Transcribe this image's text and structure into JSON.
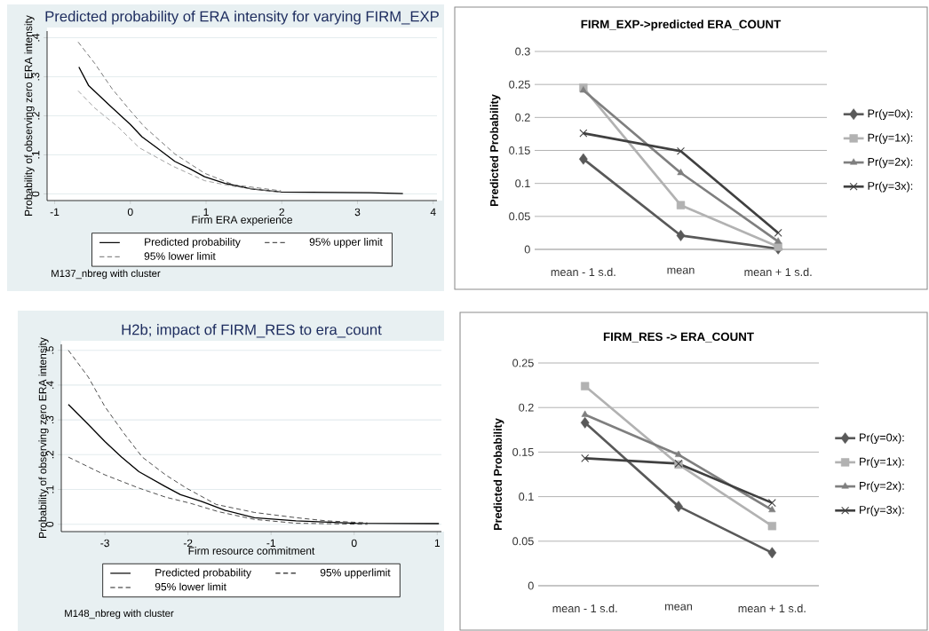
{
  "chart_data": [
    {
      "type": "line",
      "title": "Predicted probability of ERA intensity for varying FIRM_EXP",
      "xlabel": "Firm ERA experience",
      "ylabel": "Probability of observing zero ERA intensity",
      "xlim": [
        -1.1,
        4.05
      ],
      "ylim": [
        -0.017,
        0.417
      ],
      "xticks": [
        -1,
        0,
        1,
        2,
        3,
        4
      ],
      "yticks": [
        0,
        {
          "value": 0.1,
          "label": ".1"
        },
        {
          "value": 0.2,
          "label": ".2"
        },
        {
          "value": 0.3,
          "label": ".3"
        },
        {
          "value": 0.4,
          "label": ".4"
        }
      ],
      "grid": "y",
      "legend": "bottom",
      "marker": "none",
      "series": [
        {
          "name": "Predicted probability",
          "color": "#000000",
          "line_style": "solid",
          "x": [
            -0.68,
            -0.55,
            -0.28,
            0.0,
            0.155,
            0.35,
            0.59,
            0.78,
            0.98,
            1.25,
            1.6,
            1.99,
            3.17,
            3.6
          ],
          "values": [
            0.325,
            0.277,
            0.228,
            0.178,
            0.146,
            0.118,
            0.083,
            0.065,
            0.044,
            0.027,
            0.013,
            0.005,
            0.003,
            0.001
          ]
        },
        {
          "name": "95% upper limit",
          "color": "#555555",
          "line_style": "dashed",
          "x": [
            -0.69,
            -0.47,
            -0.24,
            0.0,
            0.19,
            0.59,
            0.98,
            1.37,
            1.99
          ],
          "values": [
            0.389,
            0.334,
            0.269,
            0.213,
            0.171,
            0.102,
            0.053,
            0.023,
            0.008
          ]
        },
        {
          "name": "95% lower limit",
          "color": "#8a8a8a",
          "line_style": "dashed",
          "x": [
            -0.69,
            -0.47,
            -0.16,
            0.12,
            0.55,
            0.98,
            1.37,
            1.99
          ],
          "values": [
            0.264,
            0.22,
            0.171,
            0.118,
            0.072,
            0.034,
            0.019,
            0.004
          ]
        }
      ],
      "annotations": [
        "M137_nbreg with cluster"
      ]
    },
    {
      "type": "line",
      "title": "FIRM_EXP->predicted ERA_COUNT",
      "ylabel": "Predicted Probability",
      "categories": [
        "mean - 1 s.d.",
        "mean",
        "mean + 1 s.d."
      ],
      "ylim": [
        0,
        0.3
      ],
      "yticks": [
        0,
        0.05,
        0.1,
        0.15,
        0.2,
        0.25,
        0.3
      ],
      "grid": "y",
      "legend": "right",
      "series": [
        {
          "name": "Pr(y=0x):",
          "color": "#595959",
          "marker": "diamond",
          "values": [
            0.137,
            0.021,
            0.001
          ]
        },
        {
          "name": "Pr(y=1x):",
          "color": "#b2b2b2",
          "marker": "square",
          "values": [
            0.245,
            0.067,
            0.004
          ]
        },
        {
          "name": "Pr(y=2x):",
          "color": "#7f7f7f",
          "marker": "triangle",
          "values": [
            0.241,
            0.116,
            0.012
          ]
        },
        {
          "name": "Pr(y=3x):",
          "color": "#404040",
          "marker": "cross",
          "values": [
            0.176,
            0.149,
            0.025
          ]
        }
      ]
    },
    {
      "type": "line",
      "title": "H2b; impact of FIRM_RES to era_count",
      "xlabel": "Firm resource commitment",
      "ylabel": "Probability of observing zero ERA intensity",
      "xlim": [
        -3.525,
        1.05
      ],
      "ylim": [
        -0.021,
        0.517
      ],
      "xticks": [
        -3,
        -2,
        -1,
        0,
        1
      ],
      "yticks": [
        0,
        {
          "value": 0.1,
          "label": ".1"
        },
        {
          "value": 0.2,
          "label": ".2"
        },
        {
          "value": 0.3,
          "label": ".3"
        },
        {
          "value": 0.4,
          "label": ".4"
        },
        {
          "value": 0.5,
          "label": ".5"
        }
      ],
      "grid": "y",
      "legend": "bottom",
      "marker": "none",
      "series": [
        {
          "name": "Predicted probability",
          "color": "#000000",
          "line_style": "solid",
          "x": [
            -3.44,
            -3.2,
            -3.0,
            -2.8,
            -2.59,
            -2.27,
            -2.09,
            -1.84,
            -1.55,
            -1.2,
            -0.7,
            0.02,
            1.02
          ],
          "values": [
            0.344,
            0.287,
            0.238,
            0.193,
            0.151,
            0.108,
            0.085,
            0.066,
            0.04,
            0.019,
            0.01,
            0.003,
            0.002
          ]
        },
        {
          "name": "95% upperlimit",
          "color": "#222222",
          "line_style": "dashed",
          "x": [
            -3.44,
            -3.2,
            -3.0,
            -2.77,
            -2.55,
            -2.27,
            -2.02,
            -1.66,
            -1.2,
            -0.7,
            -0.34,
            0.16
          ],
          "values": [
            0.5,
            0.423,
            0.338,
            0.261,
            0.193,
            0.142,
            0.104,
            0.057,
            0.034,
            0.019,
            0.01,
            0.004
          ]
        },
        {
          "name": "95% lower limit",
          "color": "#222222",
          "line_style": "dashed",
          "x": [
            -3.44,
            -3.0,
            -2.59,
            -2.27,
            -1.98,
            -1.63,
            -1.2,
            -0.7,
            0.16
          ],
          "values": [
            0.193,
            0.142,
            0.104,
            0.078,
            0.061,
            0.036,
            0.014,
            0.003,
            0.0
          ]
        }
      ],
      "annotations": [
        "M148_nbreg with cluster"
      ]
    },
    {
      "type": "line",
      "title": "FIRM_RES -> ERA_COUNT",
      "ylabel": "Predicted Probability",
      "categories": [
        "mean - 1 s.d.",
        "mean",
        "mean + 1 s.d."
      ],
      "ylim": [
        0,
        0.25
      ],
      "yticks": [
        0,
        0.05,
        0.1,
        0.15,
        0.2,
        0.25
      ],
      "grid": "y",
      "legend": "right",
      "series": [
        {
          "name": "Pr(y=0x):",
          "color": "#595959",
          "marker": "diamond",
          "values": [
            0.183,
            0.089,
            0.037
          ]
        },
        {
          "name": "Pr(y=1x):",
          "color": "#b2b2b2",
          "marker": "square",
          "values": [
            0.224,
            0.136,
            0.067
          ]
        },
        {
          "name": "Pr(y=2x):",
          "color": "#7f7f7f",
          "marker": "triangle",
          "values": [
            0.192,
            0.147,
            0.085
          ]
        },
        {
          "name": "Pr(y=3x):",
          "color": "#404040",
          "marker": "cross",
          "values": [
            0.143,
            0.137,
            0.093
          ]
        }
      ]
    }
  ]
}
